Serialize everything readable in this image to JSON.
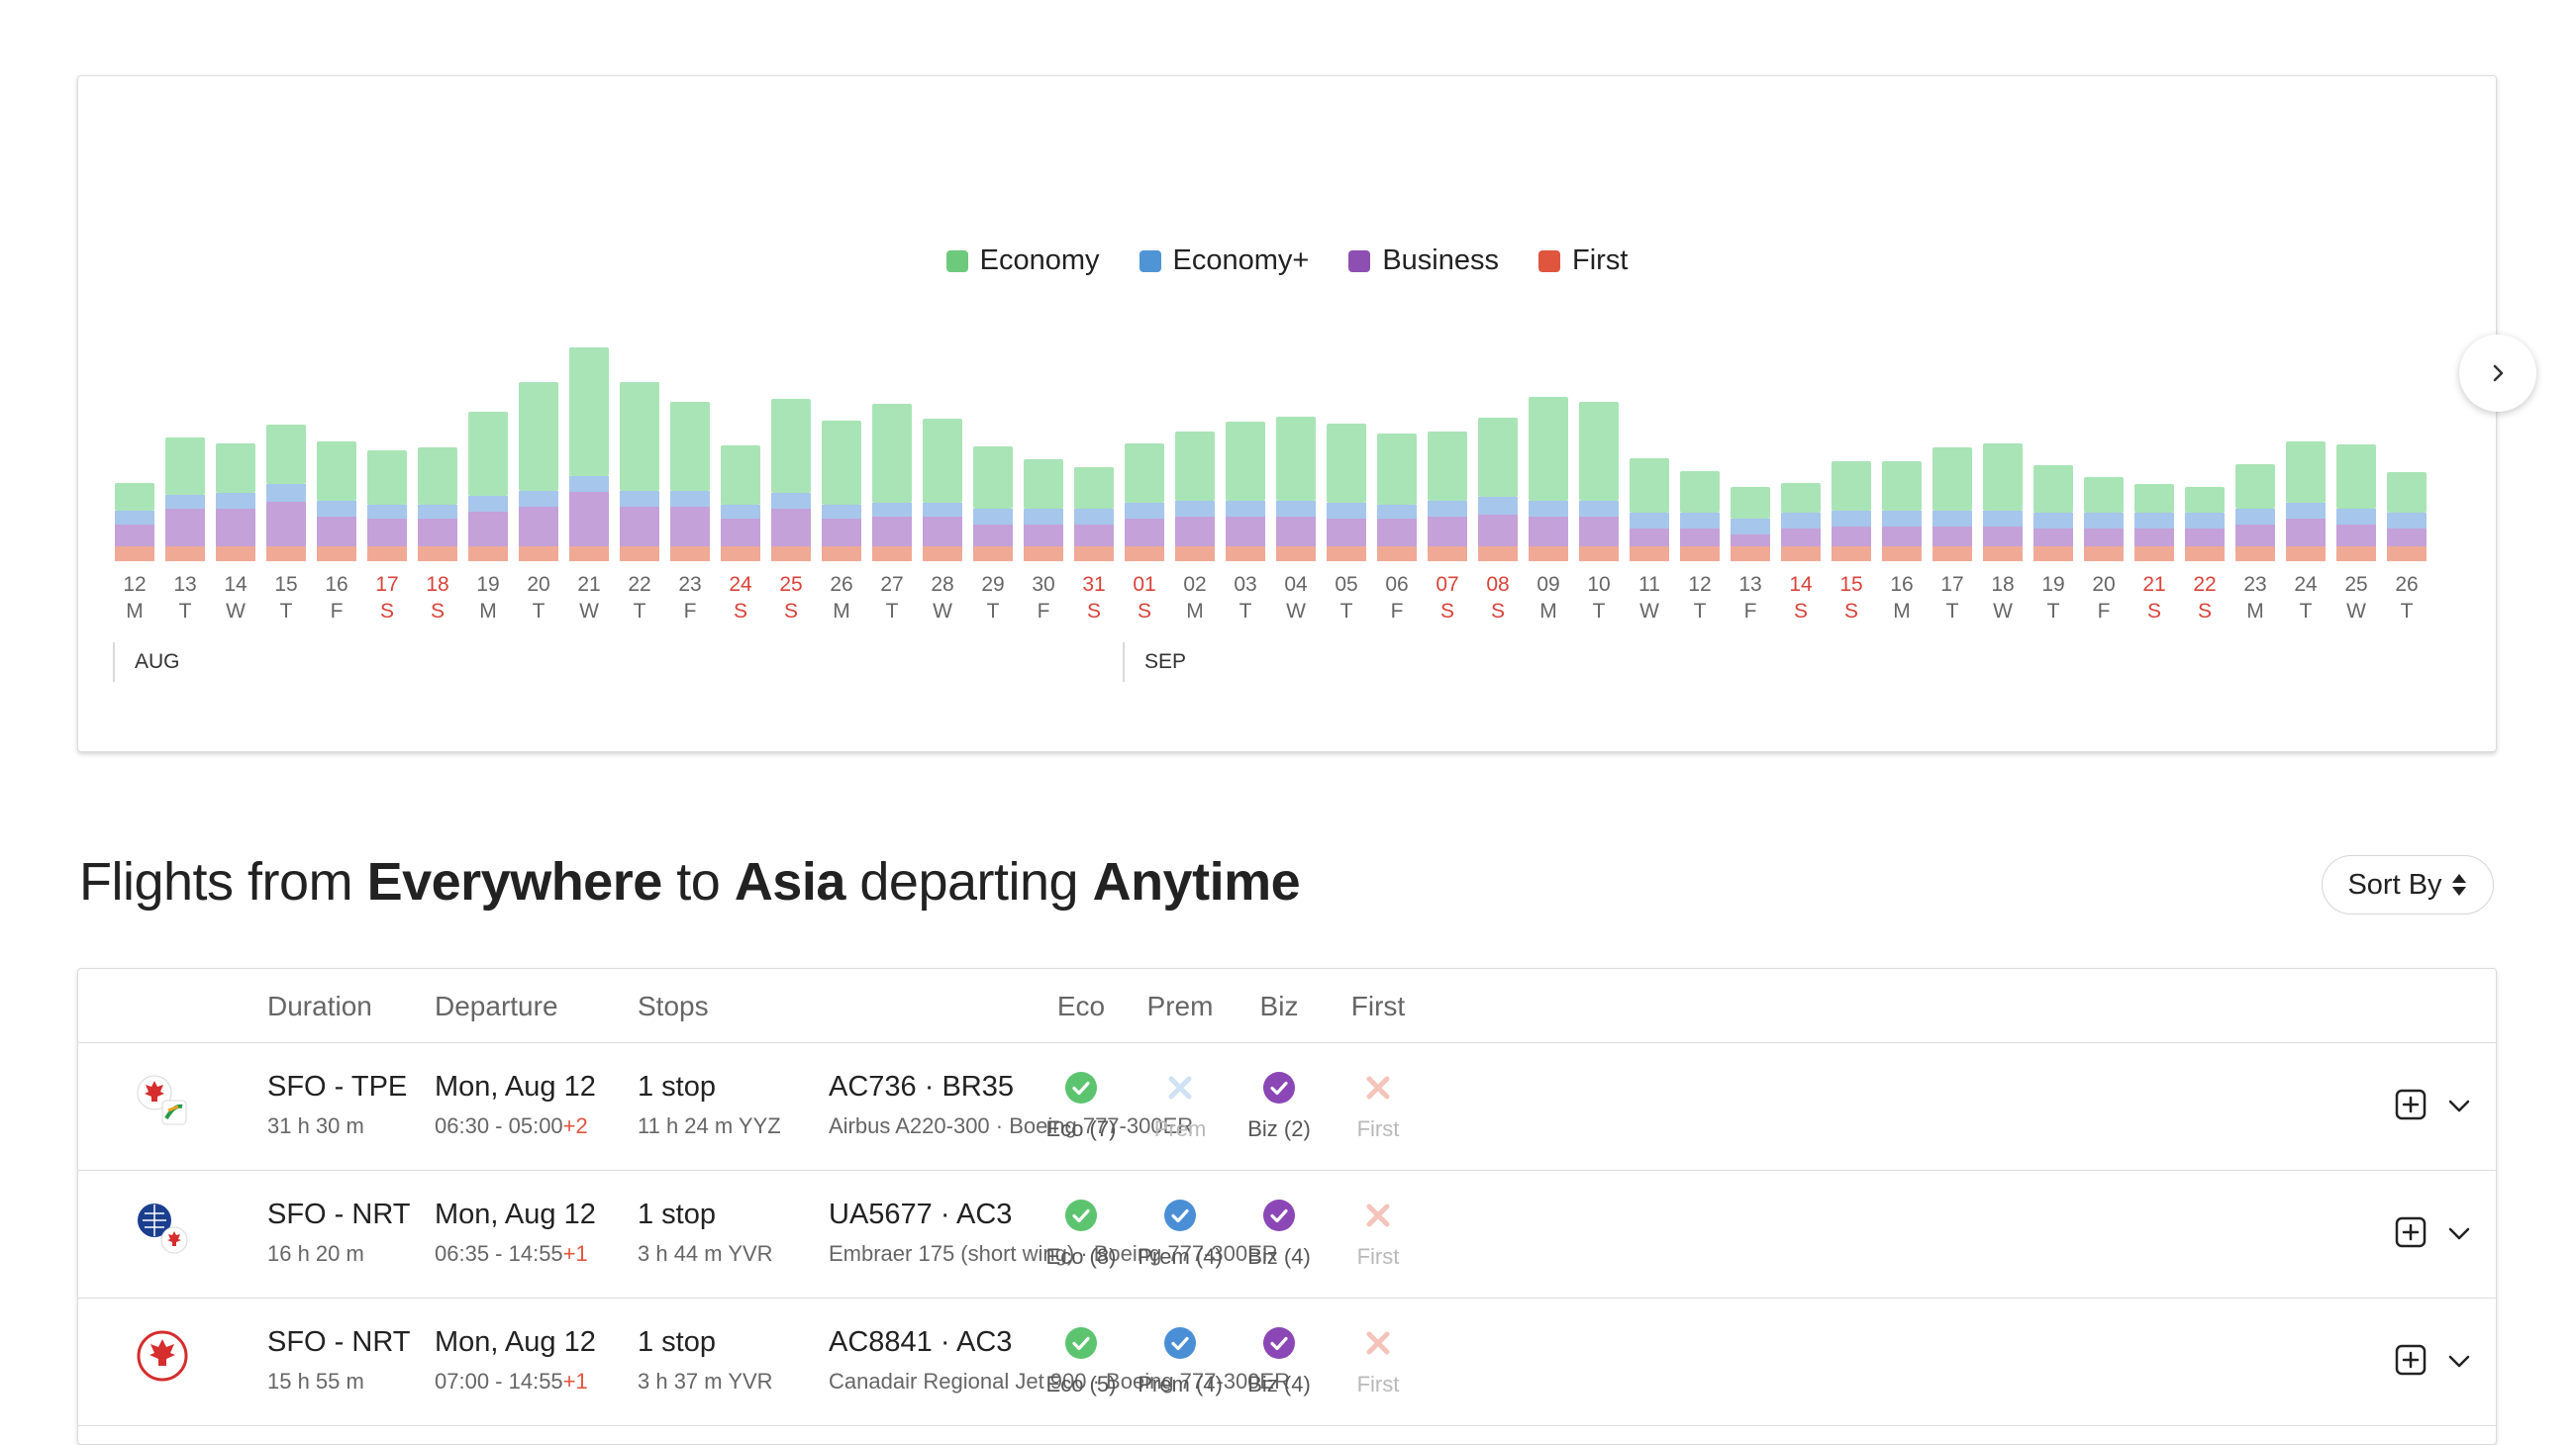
{
  "chart": {
    "legend": [
      {
        "label": "Economy",
        "color": "#6dc97b"
      },
      {
        "label": "Economy+",
        "color": "#4f94d4"
      },
      {
        "label": "Business",
        "color": "#8e4fb3"
      },
      {
        "label": "First",
        "color": "#e0553e"
      }
    ],
    "month_labels": [
      "AUG",
      "SEP"
    ],
    "next_icon": "chevron-right-icon"
  },
  "chart_data": {
    "type": "bar",
    "stacked": true,
    "categories": [
      "12 M",
      "13 T",
      "14 W",
      "15 T",
      "16 F",
      "17 S",
      "18 S",
      "19 M",
      "20 T",
      "21 W",
      "22 T",
      "23 F",
      "24 S",
      "25 S",
      "26 M",
      "27 T",
      "28 W",
      "29 T",
      "30 F",
      "31 S",
      "01 S",
      "02 M",
      "03 T",
      "04 W",
      "05 T",
      "06 F",
      "07 S",
      "08 S",
      "09 M",
      "10 T",
      "11 W",
      "12 T",
      "13 F",
      "14 S",
      "15 S",
      "16 M",
      "17 T",
      "18 W",
      "19 T",
      "20 F",
      "21 S",
      "22 S",
      "23 M",
      "24 T",
      "25 W",
      "26 T"
    ],
    "days": [
      "12",
      "13",
      "14",
      "15",
      "16",
      "17",
      "18",
      "19",
      "20",
      "21",
      "22",
      "23",
      "24",
      "25",
      "26",
      "27",
      "28",
      "29",
      "30",
      "31",
      "01",
      "02",
      "03",
      "04",
      "05",
      "06",
      "07",
      "08",
      "09",
      "10",
      "11",
      "12",
      "13",
      "14",
      "15",
      "16",
      "17",
      "18",
      "19",
      "20",
      "21",
      "22",
      "23",
      "24",
      "25",
      "26"
    ],
    "weekdays": [
      "M",
      "T",
      "W",
      "T",
      "F",
      "S",
      "S",
      "M",
      "T",
      "W",
      "T",
      "F",
      "S",
      "S",
      "M",
      "T",
      "W",
      "T",
      "F",
      "S",
      "S",
      "M",
      "T",
      "W",
      "T",
      "F",
      "S",
      "S",
      "M",
      "T",
      "W",
      "T",
      "F",
      "S",
      "S",
      "M",
      "T",
      "W",
      "T",
      "F",
      "S",
      "S",
      "M",
      "T",
      "W",
      "T"
    ],
    "weekend": [
      false,
      false,
      false,
      false,
      false,
      true,
      true,
      false,
      false,
      false,
      false,
      false,
      true,
      true,
      false,
      false,
      false,
      false,
      false,
      true,
      true,
      false,
      false,
      false,
      false,
      false,
      true,
      true,
      false,
      false,
      false,
      false,
      false,
      true,
      true,
      false,
      false,
      false,
      false,
      false,
      true,
      true,
      false,
      false,
      false,
      false
    ],
    "series": [
      {
        "name": "First",
        "color": "#f0a995",
        "values": [
          15,
          15,
          15,
          15,
          15,
          15,
          15,
          15,
          15,
          15,
          15,
          15,
          15,
          15,
          15,
          15,
          15,
          15,
          15,
          15,
          15,
          15,
          15,
          15,
          15,
          15,
          15,
          15,
          15,
          15,
          15,
          15,
          15,
          15,
          15,
          15,
          15,
          15,
          15,
          15,
          15,
          15,
          15,
          15,
          15,
          15
        ]
      },
      {
        "name": "Business",
        "color": "#c4a1d8",
        "values": [
          22,
          38,
          38,
          45,
          30,
          28,
          28,
          35,
          40,
          55,
          40,
          40,
          28,
          38,
          28,
          30,
          30,
          22,
          22,
          22,
          28,
          30,
          30,
          30,
          28,
          28,
          30,
          32,
          30,
          30,
          18,
          18,
          12,
          18,
          20,
          20,
          20,
          20,
          18,
          18,
          18,
          18,
          22,
          28,
          22,
          18
        ]
      },
      {
        "name": "Economy+",
        "color": "#a6c6ec",
        "values": [
          14,
          14,
          16,
          18,
          16,
          14,
          14,
          16,
          16,
          16,
          16,
          16,
          14,
          16,
          14,
          14,
          14,
          16,
          16,
          16,
          16,
          16,
          16,
          16,
          16,
          14,
          16,
          18,
          16,
          16,
          16,
          16,
          16,
          16,
          16,
          16,
          16,
          16,
          16,
          16,
          16,
          16,
          16,
          16,
          16,
          16
        ]
      },
      {
        "name": "Economy",
        "color": "#a9e4b6",
        "values": [
          28,
          58,
          50,
          60,
          60,
          55,
          58,
          85,
          110,
          130,
          110,
          90,
          60,
          95,
          85,
          100,
          85,
          63,
          50,
          42,
          60,
          70,
          80,
          85,
          80,
          72,
          70,
          80,
          105,
          100,
          55,
          42,
          32,
          30,
          50,
          50,
          64,
          68,
          48,
          36,
          29,
          26,
          45,
          62,
          65,
          41
        ]
      }
    ],
    "ylim": [
      0,
      220
    ],
    "grid": false,
    "legend_position": "top-center"
  },
  "results": {
    "title_parts": [
      "Flights from ",
      "Everywhere",
      " to ",
      "Asia",
      " departing ",
      "Anytime"
    ],
    "sort_label": "Sort By",
    "sort_icon": "sort-arrows-icon"
  },
  "table": {
    "headers": {
      "duration": "Duration",
      "departure": "Departure",
      "stops": "Stops",
      "eco": "Eco",
      "prem": "Prem",
      "biz": "Biz",
      "first": "First"
    },
    "rows": [
      {
        "logo": "air-canada-eva-logo",
        "route": "SFO - TPE",
        "duration": "31 h 30 m",
        "date": "Mon, Aug 12",
        "times": "06:30 - 05:00",
        "day_offset": "+2",
        "stops": "1 stop",
        "layover": "11 h 24 m  YYZ",
        "flights": "AC736  ·  BR35",
        "aircraft": "Airbus A220-300  ·  Boeing 777-300ER",
        "eco": {
          "label": "Eco (7)",
          "available": true
        },
        "prem": {
          "label": "Prem",
          "available": false
        },
        "biz": {
          "label": "Biz (2)",
          "available": true
        },
        "first": {
          "label": "First",
          "available": false
        }
      },
      {
        "logo": "united-air-canada-logo",
        "route": "SFO - NRT",
        "duration": "16 h 20 m",
        "date": "Mon, Aug 12",
        "times": "06:35 - 14:55",
        "day_offset": "+1",
        "stops": "1 stop",
        "layover": "3 h 44 m  YVR",
        "flights": "UA5677  ·  AC3",
        "aircraft": "Embraer 175 (short wing)  ·  Boeing 777-300ER",
        "eco": {
          "label": "Eco (8)",
          "available": true
        },
        "prem": {
          "label": "Prem (4)",
          "available": true
        },
        "biz": {
          "label": "Biz (4)",
          "available": true
        },
        "first": {
          "label": "First",
          "available": false
        }
      },
      {
        "logo": "air-canada-logo",
        "route": "SFO - NRT",
        "duration": "15 h 55 m",
        "date": "Mon, Aug 12",
        "times": "07:00 - 14:55",
        "day_offset": "+1",
        "stops": "1 stop",
        "layover": "3 h 37 m  YVR",
        "flights": "AC8841  ·  AC3",
        "aircraft": "Canadair Regional Jet 900  ·  Boeing 777-300ER",
        "eco": {
          "label": "Eco (5)",
          "available": true
        },
        "prem": {
          "label": "Prem (4)",
          "available": true
        },
        "biz": {
          "label": "Biz (4)",
          "available": true
        },
        "first": {
          "label": "First",
          "available": false
        }
      }
    ],
    "cabin_colors": {
      "eco": "#5cc46f",
      "prem": "#4a8fd6",
      "biz": "#8a47b5",
      "first": "#f4c4bb",
      "prem_off": "#cfe2f5"
    }
  }
}
